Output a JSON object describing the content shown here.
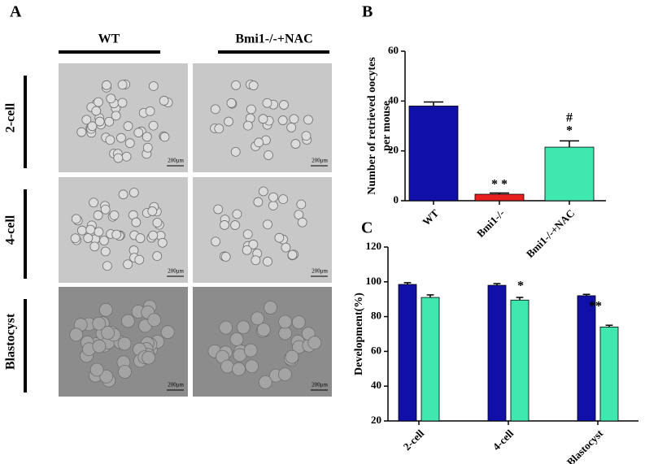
{
  "panel_a": {
    "label": "A",
    "columns": [
      "WT",
      "Bmi1-/-+NAC"
    ],
    "rows": [
      "2-cell",
      "4-cell",
      "Blastocyst"
    ],
    "scale_bar": "200μm"
  },
  "chart_data": [
    {
      "type": "bar",
      "label": "B",
      "ylabel": [
        "Number of retrieved oocytes",
        "per mouse"
      ],
      "categories": [
        "WT",
        "Bmi1-/-",
        "Bmi1-/-+NAC"
      ],
      "values": [
        38,
        2.6,
        21.5
      ],
      "errors": [
        1.6,
        0.5,
        2.5
      ],
      "colors": [
        "#1010a8",
        "#e82020",
        "#40e8b0"
      ],
      "ylim": [
        0,
        60
      ],
      "yticks": [
        0,
        20,
        40,
        60
      ],
      "annotations": [
        "* *",
        "*",
        "#"
      ]
    },
    {
      "type": "bar",
      "label": "C",
      "ylabel": [
        "Development(%)"
      ],
      "categories": [
        "2-cell",
        "4-cell",
        "Blastocyst"
      ],
      "series": [
        {
          "color": "#1010a8",
          "values": [
            98.5,
            98,
            92
          ],
          "errors": [
            1,
            1,
            0.8
          ]
        },
        {
          "color": "#40e8b0",
          "values": [
            91,
            89.5,
            74
          ],
          "errors": [
            1.5,
            1.5,
            1
          ]
        }
      ],
      "ylim": [
        20,
        120
      ],
      "yticks": [
        20,
        40,
        60,
        80,
        100,
        120
      ],
      "annotations": [
        "*",
        "**"
      ]
    }
  ]
}
